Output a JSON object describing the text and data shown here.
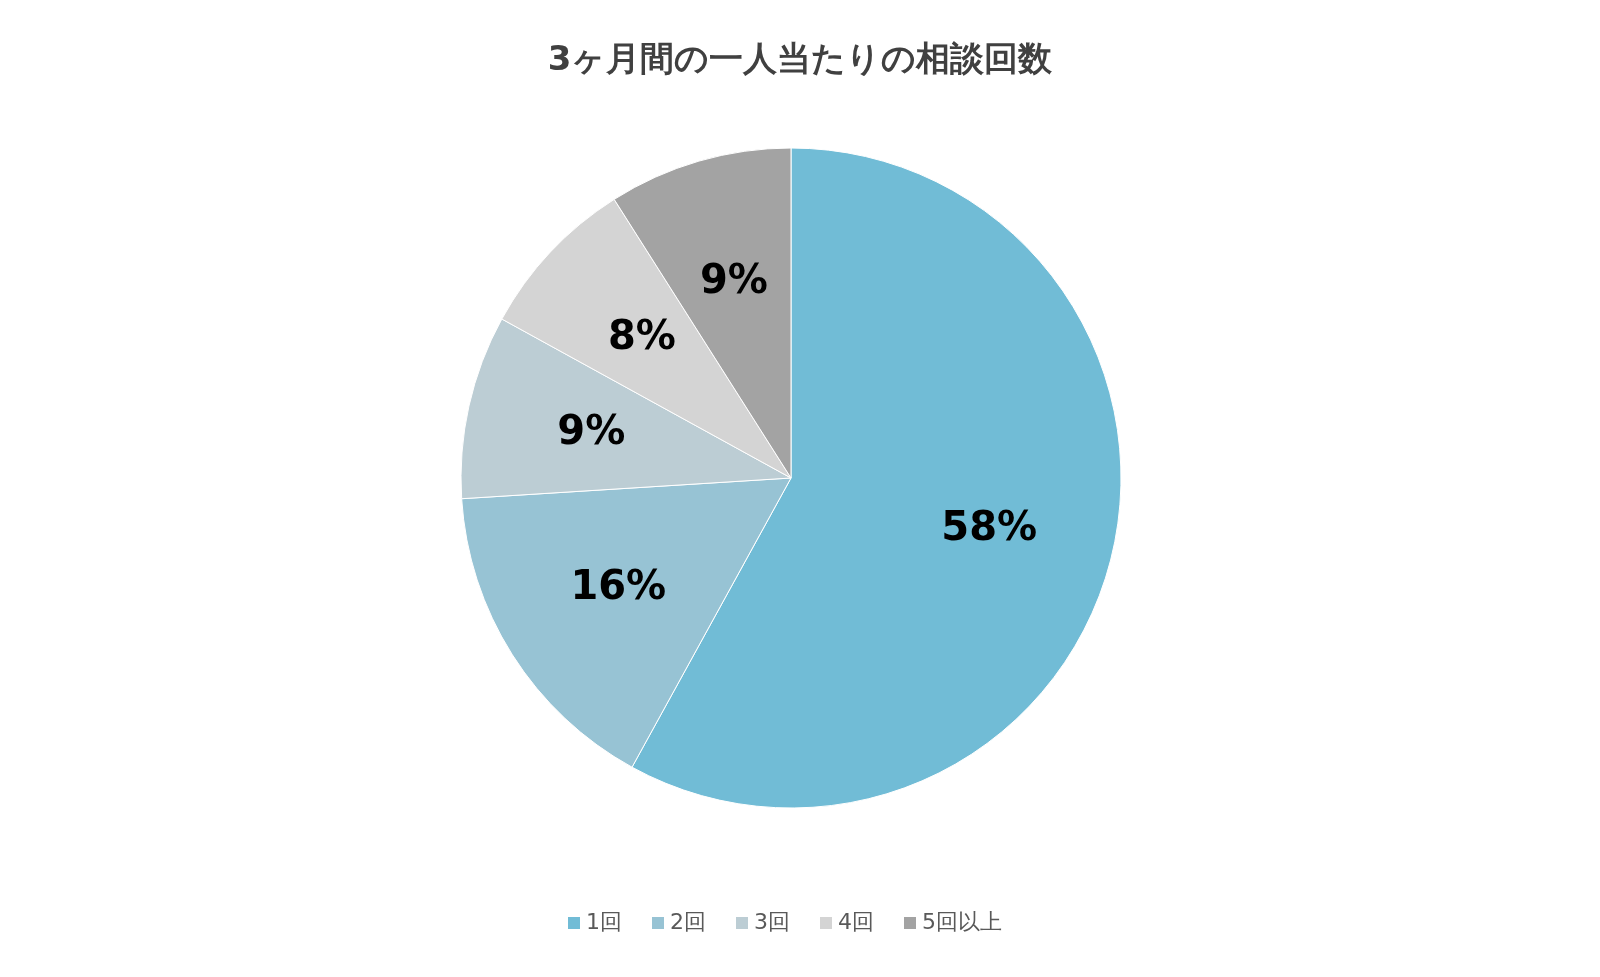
{
  "chart_data": {
    "type": "pie",
    "title": "3ヶ月間の一人当たりの相談回数",
    "categories": [
      "1回",
      "2回",
      "3回",
      "4回",
      "5回以上"
    ],
    "values": [
      58,
      16,
      9,
      8,
      9
    ],
    "colors": [
      "#71bcd6",
      "#97c3d4",
      "#bccdd4",
      "#d4d4d4",
      "#a3a3a3"
    ],
    "value_labels": [
      "58%",
      "16%",
      "9%",
      "8%",
      "9%"
    ],
    "legend": "bottom"
  }
}
